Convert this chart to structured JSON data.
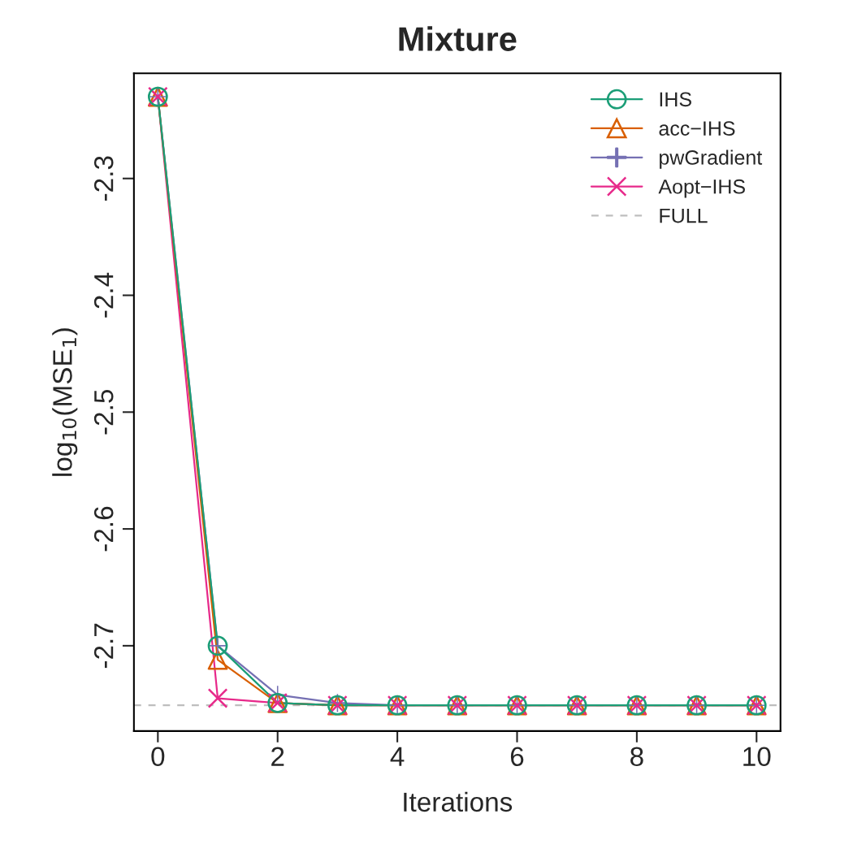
{
  "chart_data": {
    "type": "line",
    "title": "Mixture",
    "xlabel": "Iterations",
    "ylabel": "log$_{10}$(MSE$_{1}$)",
    "x": [
      0,
      1,
      2,
      3,
      4,
      5,
      6,
      7,
      8,
      9,
      10
    ],
    "series": [
      {
        "name": "IHS",
        "color": "#1b9e77",
        "marker": "circle",
        "values": [
          -2.23,
          -2.7,
          -2.749,
          -2.751,
          -2.751,
          -2.751,
          -2.751,
          -2.751,
          -2.751,
          -2.751,
          -2.751
        ]
      },
      {
        "name": "acc−IHS",
        "color": "#d95f02",
        "marker": "triangle",
        "values": [
          -2.23,
          -2.712,
          -2.749,
          -2.751,
          -2.751,
          -2.751,
          -2.751,
          -2.751,
          -2.751,
          -2.751,
          -2.751
        ]
      },
      {
        "name": "pwGradient",
        "color": "#7570b3",
        "marker": "cross",
        "values": [
          -2.23,
          -2.7,
          -2.742,
          -2.749,
          -2.751,
          -2.751,
          -2.751,
          -2.751,
          -2.751,
          -2.751,
          -2.751
        ]
      },
      {
        "name": "Aopt−IHS",
        "color": "#e7298a",
        "marker": "x",
        "values": [
          -2.23,
          -2.745,
          -2.749,
          -2.751,
          -2.751,
          -2.751,
          -2.751,
          -2.751,
          -2.751,
          -2.751,
          -2.751
        ]
      }
    ],
    "ref_lines": [
      {
        "axis": "y",
        "value": -2.751,
        "label": "FULL",
        "color": "#bebebe",
        "line_style": "dashed"
      }
    ],
    "xlim": [
      -0.4,
      10.4
    ],
    "xticks": [
      0,
      2,
      4,
      6,
      8,
      10
    ],
    "ylim": [
      -2.773,
      -2.21
    ],
    "yticks": [
      -2.3,
      -2.4,
      -2.5,
      -2.6,
      -2.7
    ],
    "grid": false,
    "legend": "top right"
  }
}
